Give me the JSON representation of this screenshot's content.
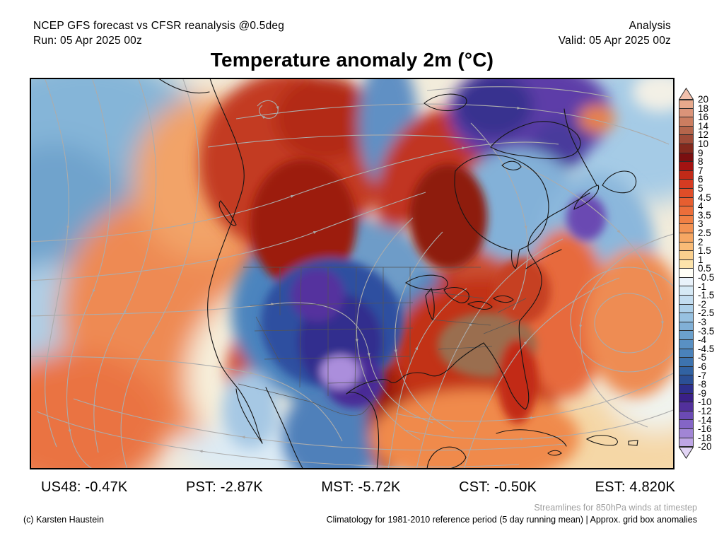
{
  "header": {
    "model_line": "NCEP GFS forecast vs CFSR reanalysis @0.5deg",
    "run_line": "Run: 05 Apr 2025 00z",
    "mode": "Analysis",
    "valid_line": "Valid: 05 Apr 2025 00z"
  },
  "title": "Temperature anomaly 2m (°C)",
  "colorbar": {
    "labels": [
      "20",
      "18",
      "16",
      "14",
      "12",
      "10",
      "9",
      "8",
      "7",
      "6",
      "5",
      "4.5",
      "4",
      "3.5",
      "3",
      "2.5",
      "2",
      "1.5",
      "1",
      "0.5",
      "-0.5",
      "-1",
      "-1.5",
      "-2",
      "-2.5",
      "-3",
      "-3.5",
      "-4",
      "-4.5",
      "-5",
      "-6",
      "-7",
      "-8",
      "-9",
      "-10",
      "-12",
      "-14",
      "-16",
      "-18",
      "-20"
    ],
    "segment_colors": [
      "#E7A98C",
      "#DB9479",
      "#CB7D60",
      "#B4654B",
      "#9E4B38",
      "#83291D",
      "#7A0F10",
      "#A31312",
      "#C22A18",
      "#D53B22",
      "#DF4D28",
      "#E65E30",
      "#EB6E3A",
      "#F08044",
      "#F39252",
      "#F6A763",
      "#F9BB77",
      "#FBD08E",
      "#FCE3AB",
      "#FFFEF6",
      "#E9F2FA",
      "#D6E9F5",
      "#C3DDF0",
      "#ADD0E9",
      "#97C1E0",
      "#81B0D6",
      "#6BA0CC",
      "#5990C3",
      "#4A82BA",
      "#3D73AE",
      "#3162A2",
      "#2B4F95",
      "#2E2F8C",
      "#3A2087",
      "#52309B",
      "#6B4AB4",
      "#8465C6",
      "#A185D5",
      "#BEA6E5"
    ],
    "arrow_top_color": "#F2C0AC",
    "arrow_bottom_color": "#E2D5F5",
    "arrow_outline_color": "#2b2b2b"
  },
  "stats": [
    {
      "region": "US48",
      "value": "-0.47K"
    },
    {
      "region": "PST",
      "value": "-2.87K"
    },
    {
      "region": "MST",
      "value": "-5.72K"
    },
    {
      "region": "CST",
      "value": "-0.50K"
    },
    {
      "region": "EST",
      "value": "4.820K"
    }
  ],
  "footer": {
    "streamline_note": "Streamlines for 850hPa winds at timestep",
    "credit": "(c) Karsten Haustein",
    "climatology_note": "Climatology for 1981-2010 reference period (5 day running mean) | Approx. grid box anomalies"
  }
}
